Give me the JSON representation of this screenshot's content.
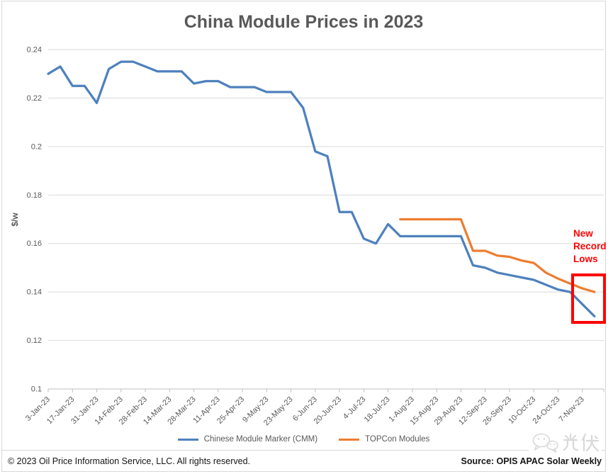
{
  "title": "China Module Prices in 2023",
  "y_axis": {
    "label": "$/w",
    "ticks": [
      "0.24",
      "0.22",
      "0.2",
      "0.18",
      "0.16",
      "0.14",
      "0.12",
      "0.1"
    ]
  },
  "x_axis": {
    "labels_every_n_points": 2,
    "tick_labels": [
      "3-Jan-23",
      "17-Jan-23",
      "31-Jan-23",
      "14-Feb-23",
      "28-Feb-23",
      "14-Mar-23",
      "28-Mar-23",
      "11-Apr-23",
      "25-Apr-23",
      "9-May-23",
      "23-May-23",
      "6-Jun-23",
      "20-Jun-23",
      "4-Jul-23",
      "18-Jul-23",
      "1-Aug-23",
      "15-Aug-23",
      "29-Aug-23",
      "12-Sep-23",
      "26-Sep-23",
      "10-Oct-23",
      "24-Oct-23",
      "7-Nov-23"
    ]
  },
  "legend": [
    {
      "label": "Chinese Module Marker (CMM)",
      "color": "#4E81BD"
    },
    {
      "label": "TOPCon Modules",
      "color": "#ED7D31"
    }
  ],
  "annotation": {
    "text": "New\nRecord\nLows",
    "color": "#FF0000",
    "box_color": "#FF0000"
  },
  "footer": {
    "copyright": "© 2023  Oil Price Information Service, LLC. All rights reserved.",
    "source": "Source: OPIS APAC Solar Weekly",
    "logo_text": "光伏"
  },
  "colors": {
    "grid": "#d9d9d9",
    "axis": "#bfbfbf",
    "axis_text": "#595959",
    "title_text": "#595959"
  },
  "chart_data": {
    "type": "line",
    "title": "China Module Prices in 2023",
    "xlabel": "",
    "ylabel": "$/w",
    "ylim": [
      0.1,
      0.24
    ],
    "y_step": 0.02,
    "grid": true,
    "legend_position": "bottom",
    "x": [
      "3-Jan-23",
      "10-Jan-23",
      "17-Jan-23",
      "24-Jan-23",
      "31-Jan-23",
      "7-Feb-23",
      "14-Feb-23",
      "21-Feb-23",
      "28-Feb-23",
      "7-Mar-23",
      "14-Mar-23",
      "21-Mar-23",
      "28-Mar-23",
      "4-Apr-23",
      "11-Apr-23",
      "18-Apr-23",
      "25-Apr-23",
      "2-May-23",
      "9-May-23",
      "16-May-23",
      "23-May-23",
      "30-May-23",
      "6-Jun-23",
      "13-Jun-23",
      "20-Jun-23",
      "27-Jun-23",
      "4-Jul-23",
      "11-Jul-23",
      "18-Jul-23",
      "25-Jul-23",
      "1-Aug-23",
      "8-Aug-23",
      "15-Aug-23",
      "22-Aug-23",
      "29-Aug-23",
      "5-Sep-23",
      "12-Sep-23",
      "19-Sep-23",
      "26-Sep-23",
      "3-Oct-23",
      "10-Oct-23",
      "17-Oct-23",
      "24-Oct-23",
      "31-Oct-23",
      "7-Nov-23",
      "14-Nov-23"
    ],
    "series": [
      {
        "name": "Chinese Module Marker (CMM)",
        "color": "#4E81BD",
        "values": [
          0.23,
          0.233,
          0.225,
          0.225,
          0.218,
          0.232,
          0.235,
          0.235,
          0.233,
          0.231,
          0.231,
          0.231,
          0.226,
          0.227,
          0.227,
          0.2245,
          0.2245,
          0.2245,
          0.2225,
          0.2225,
          0.2225,
          0.216,
          0.198,
          0.196,
          0.173,
          0.173,
          0.162,
          0.16,
          0.168,
          0.163,
          0.163,
          0.163,
          0.163,
          0.163,
          0.163,
          0.151,
          0.15,
          0.148,
          0.147,
          0.146,
          0.145,
          0.143,
          0.141,
          0.14,
          0.135,
          0.13
        ]
      },
      {
        "name": "TOPCon Modules",
        "color": "#ED7D31",
        "values": [
          null,
          null,
          null,
          null,
          null,
          null,
          null,
          null,
          null,
          null,
          null,
          null,
          null,
          null,
          null,
          null,
          null,
          null,
          null,
          null,
          null,
          null,
          null,
          null,
          null,
          null,
          null,
          null,
          null,
          0.17,
          0.17,
          0.17,
          0.17,
          0.17,
          0.17,
          0.157,
          0.157,
          0.155,
          0.1545,
          0.153,
          0.152,
          0.148,
          0.1455,
          0.1435,
          0.1415,
          0.14
        ]
      }
    ]
  }
}
